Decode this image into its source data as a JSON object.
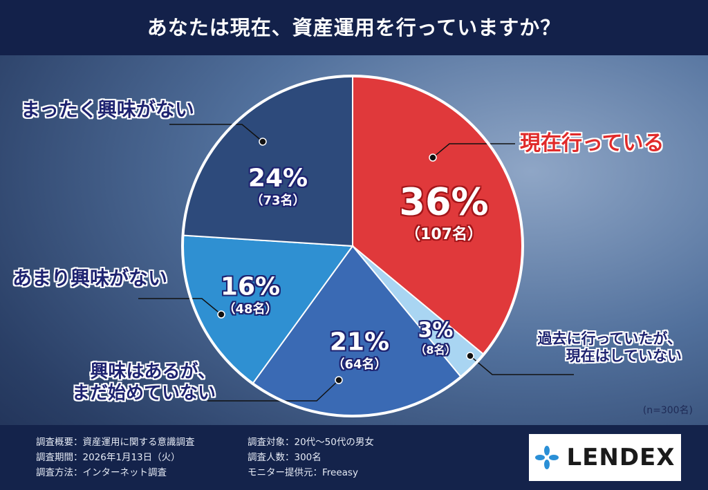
{
  "chart_data": {
    "type": "pie",
    "title": "あなたは現在、資産運用を行っていますか？",
    "categories": [
      "現在行っている",
      "過去に行っていたが、\n現在はしていない",
      "興味はあるが、\nまだ始めていない",
      "あまり興味がない",
      "まったく興味がない"
    ],
    "values": [
      36,
      3,
      21,
      16,
      24
    ],
    "value_labels": [
      "36%",
      "3%",
      "21%",
      "16%",
      "24%"
    ],
    "count_labels": [
      "（107名）",
      "（8名）",
      "（64名）",
      "（48名）",
      "（73名）"
    ],
    "colors": [
      "#e0393b",
      "#a9d5f2",
      "#3a6ab4",
      "#2f90d2",
      "#2d4a7b"
    ],
    "note": "(n=300名)"
  },
  "footer": {
    "left": [
      "調査概要：資産運用に関する意識調査",
      "調査期間：2026年1月13日（火）",
      "調査方法：インターネット調査"
    ],
    "right": [
      "調査対象：20代〜50代の男女",
      "調査人数：300名",
      "モニター提供元：Freeasy"
    ],
    "logo": "LENDEX"
  }
}
